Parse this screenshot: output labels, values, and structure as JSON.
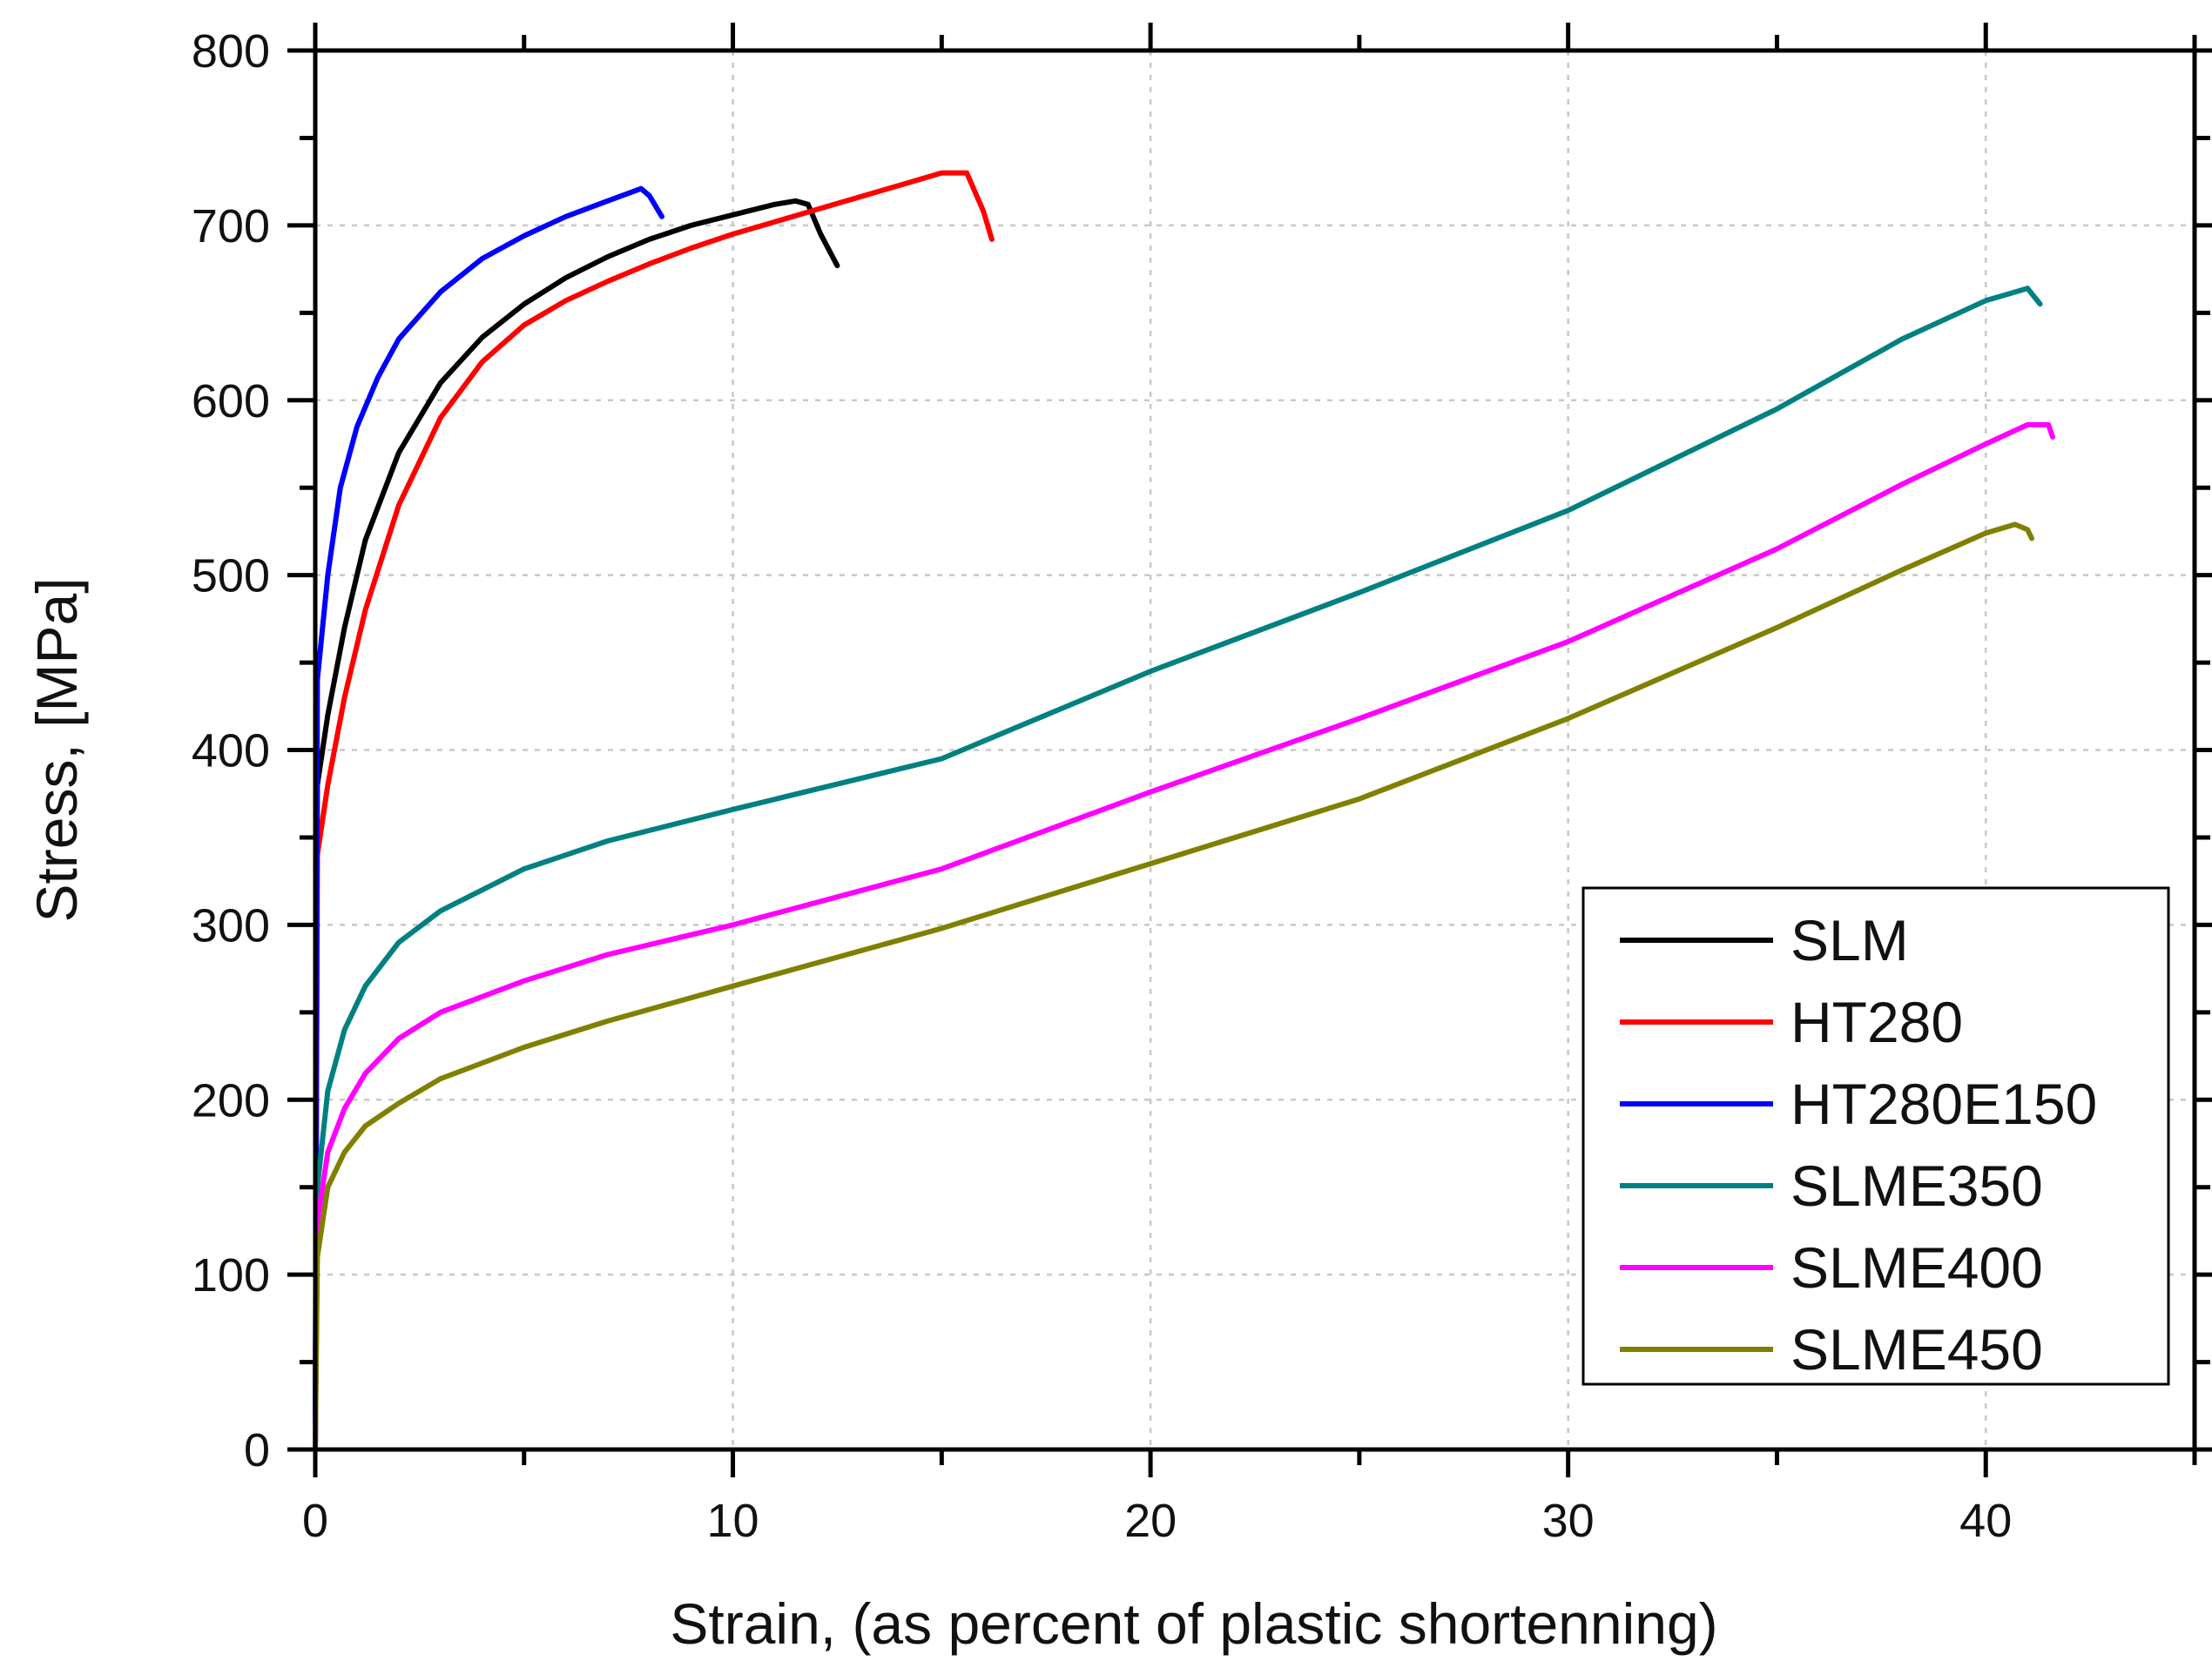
{
  "chart_data": {
    "type": "line",
    "title": "",
    "xlabel": "Strain, (as percent of plastic shortenning)",
    "ylabel": "Stress, [MPa]",
    "xlim": [
      0,
      45
    ],
    "ylim": [
      0,
      800
    ],
    "xticks": [
      0,
      10,
      20,
      30,
      40
    ],
    "xtick_labels": [
      "0",
      "10",
      "20",
      "30",
      "40"
    ],
    "yticks": [
      0,
      100,
      200,
      300,
      400,
      500,
      600,
      700,
      800
    ],
    "ytick_labels": [
      "0",
      "100",
      "200",
      "300",
      "400",
      "500",
      "600",
      "700",
      "800"
    ],
    "grid": true,
    "legend_position": "bottom-right",
    "series": [
      {
        "name": "SLM",
        "color": "#000000",
        "points": [
          [
            0,
            0
          ],
          [
            0.05,
            380
          ],
          [
            0.3,
            420
          ],
          [
            0.7,
            470
          ],
          [
            1.2,
            520
          ],
          [
            2,
            570
          ],
          [
            3,
            610
          ],
          [
            4,
            636
          ],
          [
            5,
            655
          ],
          [
            6,
            670
          ],
          [
            7,
            682
          ],
          [
            8,
            692
          ],
          [
            9,
            700
          ],
          [
            10,
            706
          ],
          [
            11,
            712
          ],
          [
            11.5,
            714
          ],
          [
            11.8,
            712
          ],
          [
            12.1,
            695
          ],
          [
            12.5,
            677
          ]
        ]
      },
      {
        "name": "HT280",
        "color": "#ff0000",
        "points": [
          [
            0,
            0
          ],
          [
            0.05,
            340
          ],
          [
            0.3,
            380
          ],
          [
            0.7,
            430
          ],
          [
            1.2,
            480
          ],
          [
            2,
            540
          ],
          [
            3,
            590
          ],
          [
            4,
            622
          ],
          [
            5,
            643
          ],
          [
            6,
            657
          ],
          [
            7,
            668
          ],
          [
            8,
            678
          ],
          [
            9,
            687
          ],
          [
            10,
            695
          ],
          [
            11,
            702
          ],
          [
            12,
            709
          ],
          [
            13,
            716
          ],
          [
            14,
            723
          ],
          [
            15,
            730
          ],
          [
            15.6,
            730
          ],
          [
            16,
            708
          ],
          [
            16.2,
            692
          ]
        ]
      },
      {
        "name": "HT280E150",
        "color": "#0000ff",
        "points": [
          [
            0,
            0
          ],
          [
            0.05,
            440
          ],
          [
            0.3,
            500
          ],
          [
            0.6,
            550
          ],
          [
            1,
            585
          ],
          [
            1.5,
            613
          ],
          [
            2,
            635
          ],
          [
            3,
            662
          ],
          [
            4,
            681
          ],
          [
            5,
            694
          ],
          [
            6,
            705
          ],
          [
            7,
            714
          ],
          [
            7.8,
            721
          ],
          [
            8,
            717
          ],
          [
            8.3,
            705
          ]
        ]
      },
      {
        "name": "SLME350",
        "color": "#008080",
        "points": [
          [
            0,
            0
          ],
          [
            0.05,
            150
          ],
          [
            0.3,
            205
          ],
          [
            0.7,
            240
          ],
          [
            1.2,
            265
          ],
          [
            2,
            290
          ],
          [
            3,
            308
          ],
          [
            5,
            332
          ],
          [
            7,
            348
          ],
          [
            10,
            366
          ],
          [
            15,
            395
          ],
          [
            20,
            445
          ],
          [
            25,
            490
          ],
          [
            30,
            537
          ],
          [
            35,
            595
          ],
          [
            38,
            635
          ],
          [
            40,
            657
          ],
          [
            41,
            664
          ],
          [
            41.3,
            655
          ]
        ]
      },
      {
        "name": "SLME400",
        "color": "#ff00ff",
        "points": [
          [
            0,
            0
          ],
          [
            0.05,
            130
          ],
          [
            0.3,
            170
          ],
          [
            0.7,
            195
          ],
          [
            1.2,
            215
          ],
          [
            2,
            235
          ],
          [
            3,
            250
          ],
          [
            5,
            268
          ],
          [
            7,
            283
          ],
          [
            10,
            300
          ],
          [
            15,
            332
          ],
          [
            20,
            376
          ],
          [
            25,
            418
          ],
          [
            30,
            462
          ],
          [
            35,
            515
          ],
          [
            38,
            552
          ],
          [
            40,
            575
          ],
          [
            41,
            586
          ],
          [
            41.5,
            586
          ],
          [
            41.6,
            579
          ]
        ]
      },
      {
        "name": "SLME450",
        "color": "#808000",
        "points": [
          [
            0,
            0
          ],
          [
            0.05,
            110
          ],
          [
            0.3,
            150
          ],
          [
            0.7,
            170
          ],
          [
            1.2,
            185
          ],
          [
            2,
            198
          ],
          [
            3,
            212
          ],
          [
            5,
            230
          ],
          [
            7,
            245
          ],
          [
            10,
            265
          ],
          [
            15,
            298
          ],
          [
            20,
            335
          ],
          [
            25,
            372
          ],
          [
            30,
            418
          ],
          [
            35,
            470
          ],
          [
            38,
            503
          ],
          [
            40,
            524
          ],
          [
            40.7,
            529
          ],
          [
            41,
            526
          ],
          [
            41.1,
            521
          ]
        ]
      }
    ]
  }
}
